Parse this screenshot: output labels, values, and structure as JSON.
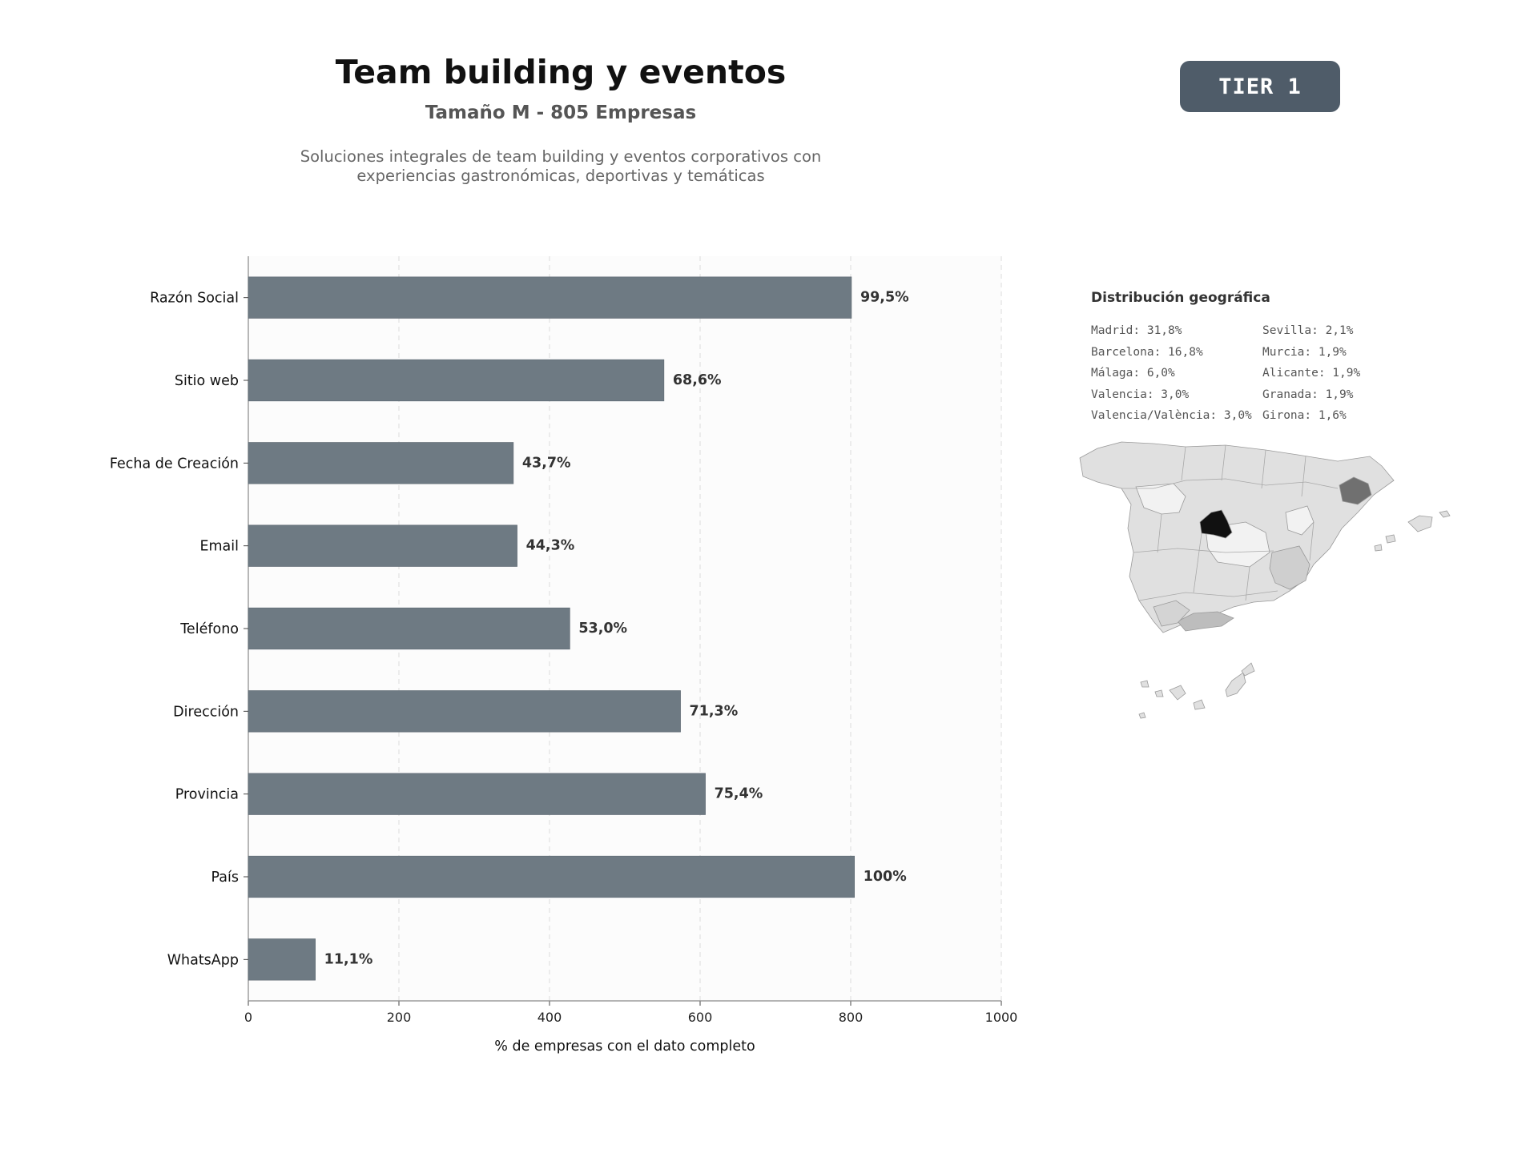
{
  "header": {
    "title": "Team building y eventos",
    "subtitle": "Tamaño M - 805 Empresas",
    "description_line1": "Soluciones integrales de team building y eventos corporativos con",
    "description_line2": "experiencias gastronómicas, deportivas y temáticas",
    "tier_badge": "TIER 1"
  },
  "chart_data": {
    "type": "bar",
    "orientation": "horizontal",
    "categories": [
      "Razón Social",
      "Sitio web",
      "Fecha de Creación",
      "Email",
      "Teléfono",
      "Dirección",
      "Provincia",
      "País",
      "WhatsApp"
    ],
    "values": [
      801,
      552,
      352,
      357,
      427,
      574,
      607,
      805,
      89
    ],
    "data_labels": [
      "99,5%",
      "68,6%",
      "43,7%",
      "44,3%",
      "53,0%",
      "71,3%",
      "75,4%",
      "100%",
      "11,1%"
    ],
    "xlabel": "% de empresas con el dato completo",
    "xlim": [
      0,
      1000
    ],
    "xticks": [
      0,
      200,
      400,
      600,
      800,
      1000
    ],
    "grid": "vertical dashed",
    "bar_color": "#6e7a83"
  },
  "geo": {
    "title": "Distribución geográfica",
    "col1": [
      "Madrid: 31,8%",
      "Barcelona: 16,8%",
      "Málaga: 6,0%",
      "Valencia: 3,0%",
      "Valencia/València: 3,0%"
    ],
    "col2": [
      "Sevilla: 2,1%",
      "Murcia: 1,9%",
      "Alicante: 1,9%",
      "Granada: 1,9%",
      "Girona: 1,6%"
    ]
  }
}
